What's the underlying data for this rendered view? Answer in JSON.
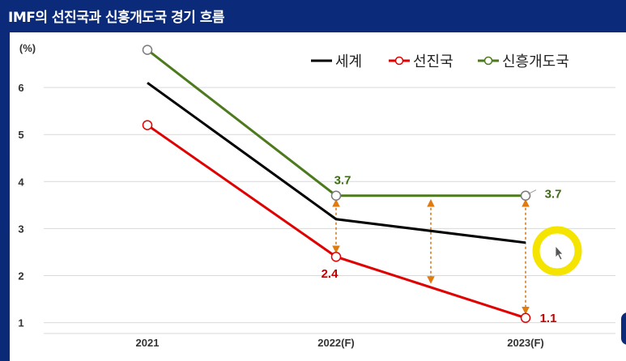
{
  "header": {
    "title": "IMF의 선진국과 신흥개도국 경기 흐름"
  },
  "chart_data": {
    "type": "line",
    "title": "",
    "ylabel": "(%)",
    "xlabel": "",
    "categories": [
      "2021",
      "2022(F)",
      "2023(F)"
    ],
    "ylim": [
      0.7,
      7.0
    ],
    "yticks": [
      "1",
      "2",
      "3",
      "4",
      "5",
      "6"
    ],
    "grid": "horizontal",
    "legend_position": "top-right",
    "series": [
      {
        "name": "세계",
        "values": [
          6.1,
          3.2,
          2.7
        ],
        "color": "#000000",
        "markers": false,
        "labels": [
          "",
          "",
          ""
        ]
      },
      {
        "name": "선진국",
        "values": [
          5.2,
          2.4,
          1.1
        ],
        "color": "#e00000",
        "markers": true,
        "labels": [
          "",
          "2.4",
          "1.1"
        ],
        "label_color": "#c00000"
      },
      {
        "name": "신흥개도국",
        "values": [
          6.8,
          3.7,
          3.7
        ],
        "color": "#4e7a1e",
        "markers": true,
        "labels": [
          "",
          "3.7",
          "3.7"
        ],
        "label_color": "#3f6b17"
      }
    ],
    "gap_arrows": [
      {
        "x": 1.0,
        "from": 2.4,
        "to": 3.7
      },
      {
        "x": 1.5,
        "from": 1.75,
        "to": 3.7
      },
      {
        "x": 2.0,
        "from": 1.1,
        "to": 3.7
      }
    ],
    "arrow_color": "#e07b10"
  },
  "cursor_highlight": {
    "ring_color": "#f5e400",
    "pointer_icon": "mouse-pointer-icon"
  }
}
